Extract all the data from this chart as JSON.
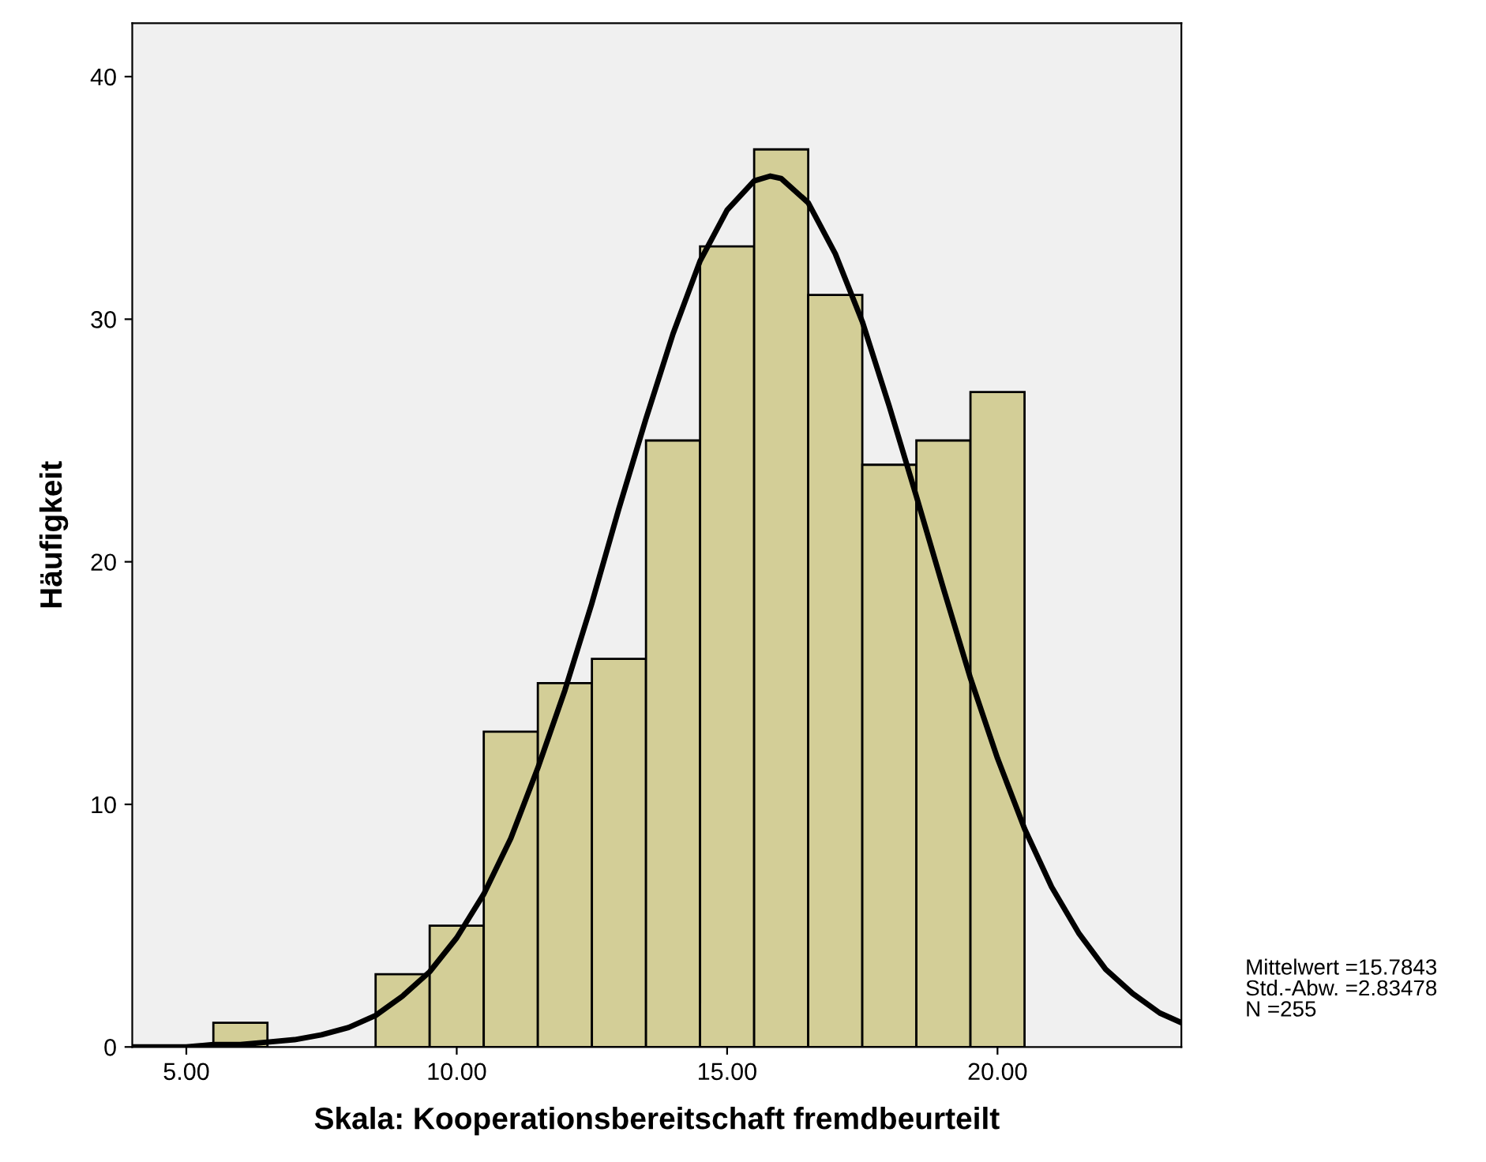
{
  "chart_data": {
    "type": "histogram",
    "xlabel": "Skala: Kooperationsbereitschaft fremdbeurteilt",
    "ylabel": "Häufigkeit",
    "bins": [
      5.5,
      6.5,
      7.5,
      8.5,
      9.5,
      10.5,
      11.5,
      12.5,
      13.5,
      14.5,
      15.5,
      16.5,
      17.5,
      18.5,
      19.5,
      20.5
    ],
    "values": [
      1,
      0,
      0,
      3,
      5,
      13,
      15,
      16,
      25,
      33,
      37,
      31,
      24,
      25,
      27
    ],
    "color": "#d3ce97",
    "xlim": [
      4.0,
      23.4
    ],
    "ylim": [
      0,
      42.2
    ],
    "xticks": [
      {
        "value": 5,
        "label": "5.00"
      },
      {
        "value": 10,
        "label": "10.00"
      },
      {
        "value": 15,
        "label": "15.00"
      },
      {
        "value": 20,
        "label": "20.00"
      }
    ],
    "yticks": [
      0,
      10,
      20,
      30,
      40
    ],
    "series": [
      {
        "type": "line",
        "color": "#000000",
        "x": [
          4,
          4.5,
          5,
          5.5,
          6,
          6.5,
          7,
          7.5,
          8,
          8.5,
          9,
          9.5,
          10,
          10.5,
          11,
          11.5,
          12,
          12.5,
          13,
          13.5,
          14,
          14.5,
          15,
          15.5,
          15.8,
          16,
          16.5,
          17,
          17.5,
          18,
          18.5,
          19,
          19.5,
          20,
          20.5,
          21,
          21.5,
          22,
          22.5,
          23,
          23.4
        ],
        "values": [
          0.0,
          0.0,
          0.0,
          0.1,
          0.1,
          0.2,
          0.3,
          0.5,
          0.8,
          1.3,
          2.1,
          3.1,
          4.5,
          6.3,
          8.6,
          11.5,
          14.7,
          18.3,
          22.2,
          25.9,
          29.4,
          32.4,
          34.5,
          35.7,
          35.9,
          35.8,
          34.8,
          32.7,
          29.9,
          26.4,
          22.7,
          18.9,
          15.2,
          11.9,
          9.0,
          6.6,
          4.7,
          3.2,
          2.2,
          1.4,
          1.0
        ]
      }
    ],
    "annotations": [
      "Mittelwert =15.7843",
      "Std.-Abw. =2.83478",
      "N =255"
    ]
  }
}
